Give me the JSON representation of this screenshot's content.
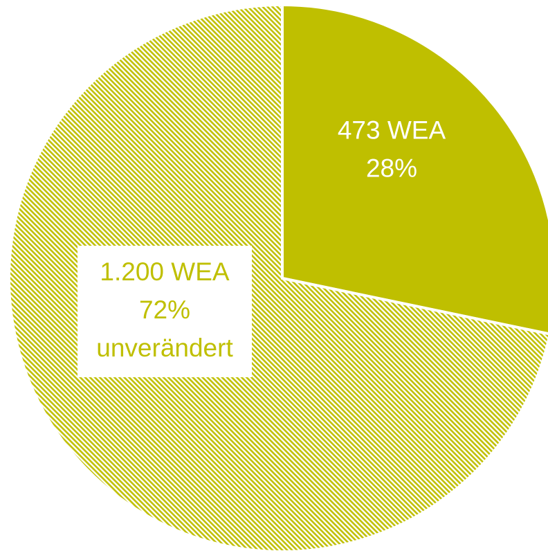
{
  "chart_data": {
    "type": "pie",
    "categories": [
      null,
      "unverändert"
    ],
    "values": [
      473,
      1200
    ],
    "value_labels": [
      "473 WEA",
      "1.200 WEA"
    ],
    "percentages": [
      28,
      72
    ],
    "percentage_labels": [
      "28%",
      "72%"
    ],
    "color": "#bfbf00",
    "hatched": [
      false,
      true
    ],
    "start_angle": 0,
    "direction": "clockwise"
  }
}
